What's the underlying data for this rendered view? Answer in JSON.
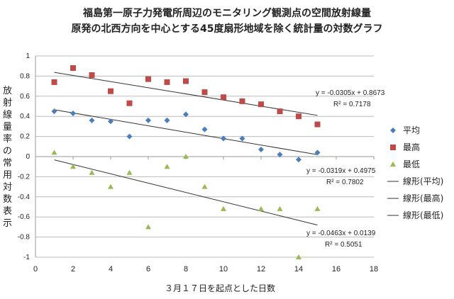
{
  "chart_data": {
    "type": "scatter",
    "title": "福島第一原子力発電所周辺のモニタリング観測点の空間放射線量",
    "subtitle": "原発の北西方向を中心とする45度扇形地域を除く統計量の対数グラフ",
    "xlabel": "３月１７日を起点とした日数",
    "ylabel": "放射線量率の常用対数表示",
    "xlim": [
      0,
      18
    ],
    "ylim": [
      -1,
      1
    ],
    "xticks": [
      "0",
      "2",
      "4",
      "6",
      "8",
      "10",
      "12",
      "14",
      "16",
      "18"
    ],
    "yticks": [
      "1",
      "0.8",
      "0.6",
      "0.4",
      "0.2",
      "0",
      "-0.2",
      "-0.4",
      "-0.6",
      "-0.8",
      "-1"
    ],
    "grid": "horizontal",
    "legend_position": "right",
    "x": [
      1,
      2,
      3,
      4,
      5,
      6,
      7,
      8,
      9,
      10,
      11,
      12,
      13,
      14,
      15
    ],
    "series": [
      {
        "name": "平均",
        "marker": "diamond",
        "color": "#4a7ebb",
        "values": [
          0.45,
          0.43,
          0.36,
          0.35,
          0.2,
          0.36,
          0.36,
          0.42,
          0.27,
          0.18,
          0.18,
          0.07,
          0.02,
          -0.03,
          0.04
        ]
      },
      {
        "name": "最高",
        "marker": "square",
        "color": "#be4b48",
        "values": [
          0.74,
          0.88,
          0.81,
          0.65,
          0.53,
          0.77,
          0.74,
          0.75,
          0.64,
          0.59,
          0.55,
          0.52,
          0.45,
          0.4,
          0.32
        ]
      },
      {
        "name": "最低",
        "marker": "triangle",
        "color": "#98b954",
        "values": [
          0.04,
          -0.1,
          -0.16,
          -0.3,
          -0.16,
          -0.7,
          -0.1,
          0.0,
          -0.3,
          -0.52,
          null,
          -0.52,
          -0.52,
          -1.0,
          -0.52
        ]
      }
    ],
    "trendlines": [
      {
        "name": "線形(平均)",
        "slope": -0.0319,
        "intercept": 0.4975,
        "equation": "y = -0.0319x + 0.4975",
        "r2": "R² = 0.7802"
      },
      {
        "name": "線形(最高)",
        "slope": -0.0305,
        "intercept": 0.8673,
        "equation": "y = -0.0305x + 0.8673",
        "r2": "R² = 0.7178"
      },
      {
        "name": "線形(最低)",
        "slope": -0.0463,
        "intercept": 0.0139,
        "equation": "y = -0.0463x + 0.0139",
        "r2": "R² = 0.5051"
      }
    ]
  }
}
